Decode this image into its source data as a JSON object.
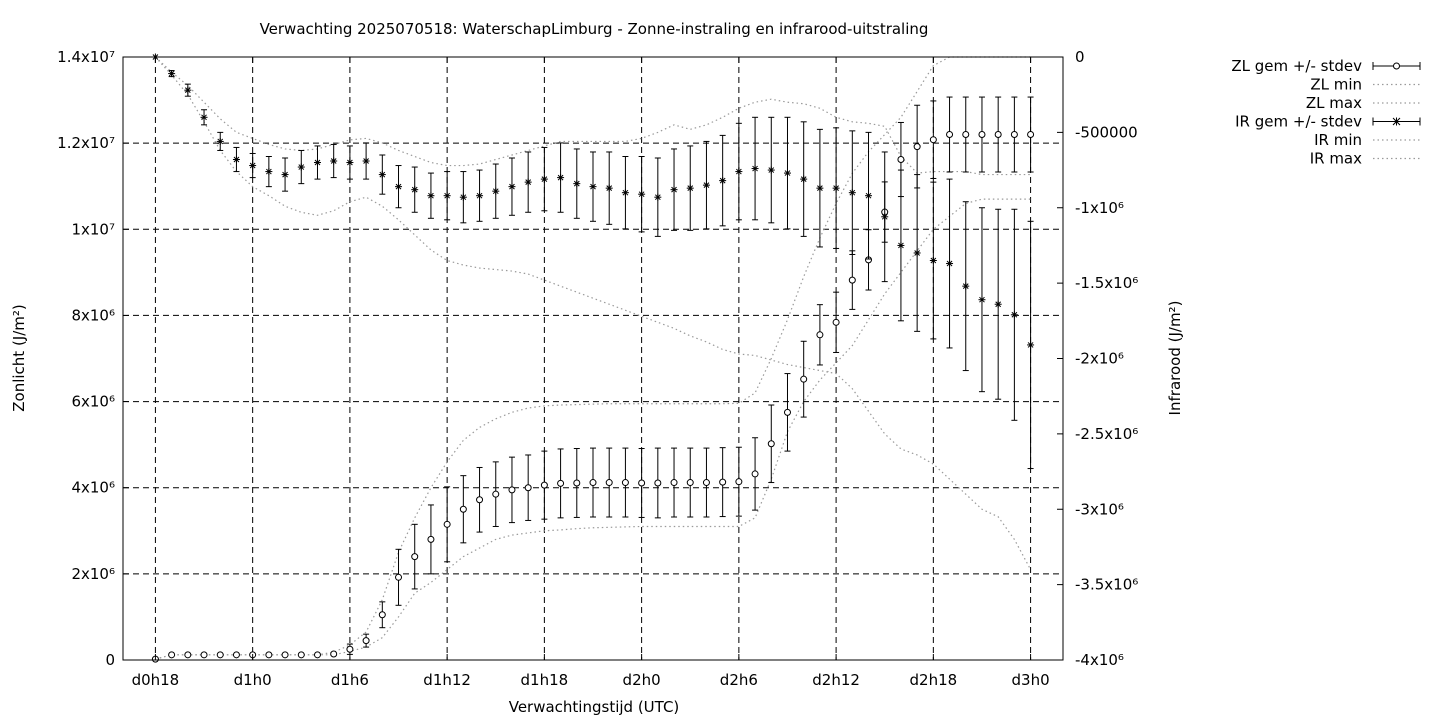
{
  "chart_data": {
    "type": "line",
    "title": "Verwachting 2025070518: WaterschapLimburg - Zonne-instraling en infrarood-uitstraling",
    "xlabel": "Verwachtingstijd (UTC)",
    "ylabel": "Zonlicht (J/m²)",
    "y2label": "Infrarood (J/m²)",
    "x_tick_labels": [
      "d0h18",
      "d1h0",
      "d1h6",
      "d1h12",
      "d1h18",
      "d2h0",
      "d2h6",
      "d2h12",
      "d2h18",
      "d3h0"
    ],
    "y_tick_labels": [
      "0",
      "2x10⁶",
      "4x10⁶",
      "6x10⁶",
      "8x10⁶",
      "1x10⁷",
      "1.2x10⁷",
      "1.4x10⁷"
    ],
    "y2_tick_labels": [
      "0",
      "-500000",
      "-1x10⁶",
      "-1.5x10⁶",
      "-2x10⁶",
      "-2.5x10⁶",
      "-3x10⁶",
      "-3.5x10⁶",
      "-4x10⁶"
    ],
    "xlim": [
      -2,
      56
    ],
    "ylim": [
      0,
      14000000
    ],
    "y2lim": [
      -4000000,
      0
    ],
    "grid": true,
    "legend_position": "outside-top-right",
    "x_hours": [
      0,
      1,
      2,
      3,
      4,
      5,
      6,
      7,
      8,
      9,
      10,
      11,
      12,
      13,
      14,
      15,
      16,
      17,
      18,
      19,
      20,
      21,
      22,
      23,
      24,
      25,
      26,
      27,
      28,
      29,
      30,
      31,
      32,
      33,
      34,
      35,
      36,
      37,
      38,
      39,
      40,
      41,
      42,
      43,
      44,
      45,
      46,
      47,
      48,
      49,
      50,
      51,
      52,
      53,
      54
    ],
    "series": [
      {
        "name": "ZL gem +/- stdev",
        "axis": "left",
        "marker": "circle",
        "values": [
          20000,
          120000,
          120000,
          120000,
          120000,
          120000,
          120000,
          120000,
          120000,
          120000,
          120000,
          140000,
          250000,
          450000,
          1050000,
          1920000,
          2400000,
          2800000,
          3150000,
          3500000,
          3720000,
          3850000,
          3950000,
          4000000,
          4060000,
          4100000,
          4110000,
          4120000,
          4120000,
          4120000,
          4110000,
          4110000,
          4120000,
          4120000,
          4120000,
          4130000,
          4140000,
          4320000,
          5020000,
          5750000,
          6520000,
          7550000,
          7840000,
          8820000,
          9290000,
          10400000,
          11620000,
          11920000,
          12080000,
          12200000,
          12200000,
          12200000,
          12200000,
          12200000,
          12200000
        ],
        "stdev": [
          0,
          0,
          0,
          0,
          0,
          0,
          0,
          0,
          0,
          0,
          0,
          20000,
          120000,
          150000,
          300000,
          650000,
          750000,
          800000,
          870000,
          780000,
          750000,
          750000,
          760000,
          760000,
          790000,
          800000,
          800000,
          800000,
          800000,
          800000,
          800000,
          810000,
          800000,
          800000,
          800000,
          800000,
          800000,
          840000,
          900000,
          900000,
          880000,
          700000,
          700000,
          680000,
          700000,
          700000,
          860000,
          960000,
          900000,
          870000,
          870000,
          870000,
          870000,
          870000,
          870000
        ]
      },
      {
        "name": "ZL min",
        "axis": "left",
        "values": [
          20000,
          120000,
          120000,
          120000,
          120000,
          120000,
          120000,
          120000,
          120000,
          120000,
          120000,
          120000,
          200000,
          300000,
          520000,
          1000000,
          1550000,
          1800000,
          2100000,
          2400000,
          2600000,
          2800000,
          2900000,
          2950000,
          3000000,
          3020000,
          3050000,
          3070000,
          3080000,
          3090000,
          3100000,
          3100000,
          3100000,
          3100000,
          3100000,
          3100000,
          3100000,
          3300000,
          4200000,
          5300000,
          6000000,
          6500000,
          6900000,
          7300000,
          7900000,
          8500000,
          9000000,
          9500000,
          10000000,
          10300000,
          10600000,
          10700000,
          10700000,
          10700000,
          10700000
        ]
      },
      {
        "name": "ZL max",
        "axis": "left",
        "values": [
          20000,
          120000,
          120000,
          120000,
          120000,
          120000,
          120000,
          120000,
          120000,
          120000,
          120000,
          180000,
          350000,
          650000,
          1400000,
          2500000,
          3300000,
          4000000,
          4600000,
          5100000,
          5400000,
          5600000,
          5750000,
          5850000,
          5900000,
          5920000,
          5930000,
          5940000,
          5950000,
          5950000,
          5950000,
          5950000,
          5950000,
          5950000,
          5950000,
          5950000,
          5960000,
          6200000,
          7000000,
          7900000,
          8900000,
          9800000,
          10600000,
          11300000,
          11800000,
          12200000,
          12600000,
          13200000,
          13800000,
          14000000,
          14000000,
          14000000,
          14000000,
          14000000,
          14000000
        ]
      },
      {
        "name": "IR gem +/- stdev",
        "axis": "right",
        "marker": "star",
        "values": [
          0,
          -110000,
          -220000,
          -400000,
          -560000,
          -680000,
          -720000,
          -760000,
          -780000,
          -730000,
          -700000,
          -690000,
          -700000,
          -690000,
          -780000,
          -860000,
          -880000,
          -920000,
          -920000,
          -930000,
          -920000,
          -890000,
          -860000,
          -830000,
          -810000,
          -800000,
          -840000,
          -860000,
          -870000,
          -900000,
          -910000,
          -930000,
          -880000,
          -870000,
          -850000,
          -820000,
          -760000,
          -740000,
          -750000,
          -770000,
          -810000,
          -870000,
          -870000,
          -900000,
          -920000,
          -1060000,
          -1250000,
          -1300000,
          -1350000,
          -1370000,
          -1520000,
          -1610000,
          -1640000,
          -1710000,
          -1910000
        ],
        "stdev": [
          0,
          20000,
          40000,
          50000,
          60000,
          80000,
          80000,
          100000,
          110000,
          110000,
          110000,
          110000,
          110000,
          120000,
          130000,
          140000,
          150000,
          150000,
          160000,
          170000,
          170000,
          180000,
          190000,
          200000,
          210000,
          230000,
          230000,
          230000,
          240000,
          240000,
          250000,
          260000,
          270000,
          280000,
          290000,
          300000,
          320000,
          340000,
          350000,
          370000,
          380000,
          390000,
          400000,
          410000,
          420000,
          430000,
          500000,
          520000,
          520000,
          560000,
          560000,
          610000,
          630000,
          700000,
          820000
        ]
      },
      {
        "name": "IR min",
        "axis": "right",
        "values": [
          0,
          -120000,
          -250000,
          -430000,
          -620000,
          -760000,
          -860000,
          -920000,
          -990000,
          -1030000,
          -1050000,
          -1020000,
          -960000,
          -930000,
          -990000,
          -1080000,
          -1180000,
          -1280000,
          -1350000,
          -1380000,
          -1400000,
          -1410000,
          -1420000,
          -1440000,
          -1480000,
          -1520000,
          -1560000,
          -1600000,
          -1640000,
          -1680000,
          -1720000,
          -1760000,
          -1800000,
          -1850000,
          -1890000,
          -1940000,
          -1970000,
          -1980000,
          -2010000,
          -2040000,
          -2060000,
          -2080000,
          -2100000,
          -2200000,
          -2350000,
          -2500000,
          -2600000,
          -2640000,
          -2700000,
          -2800000,
          -2900000,
          -3000000,
          -3050000,
          -3200000,
          -3400000
        ]
      },
      {
        "name": "IR max",
        "axis": "right",
        "values": [
          0,
          -100000,
          -190000,
          -300000,
          -410000,
          -500000,
          -540000,
          -580000,
          -610000,
          -620000,
          -610000,
          -580000,
          -550000,
          -540000,
          -570000,
          -620000,
          -660000,
          -700000,
          -720000,
          -720000,
          -710000,
          -680000,
          -650000,
          -620000,
          -590000,
          -560000,
          -560000,
          -560000,
          -560000,
          -560000,
          -540000,
          -500000,
          -450000,
          -480000,
          -450000,
          -400000,
          -340000,
          -300000,
          -280000,
          -300000,
          -310000,
          -340000,
          -400000,
          -430000,
          -440000,
          -460000,
          -660000,
          -770000,
          -760000,
          -760000,
          -760000,
          -780000,
          -780000,
          -780000,
          -780000
        ]
      }
    ]
  }
}
